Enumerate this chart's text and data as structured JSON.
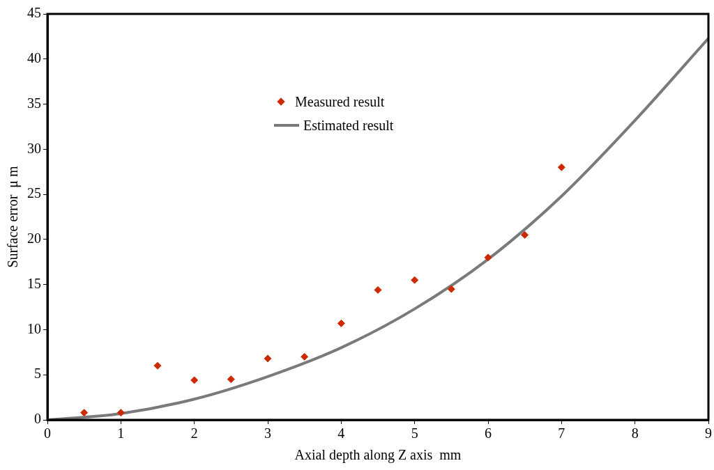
{
  "chart_data": {
    "type": "scatter",
    "xlabel": "Axial depth along Z axis  mm",
    "ylabel": "Surface error  μ m",
    "xlim": [
      0,
      9
    ],
    "xticks": [
      0,
      1,
      2,
      3,
      4,
      5,
      6,
      7,
      8,
      9
    ],
    "ylim": [
      0,
      45
    ],
    "yticks": [
      0,
      5,
      10,
      15,
      20,
      25,
      30,
      35,
      40,
      45
    ],
    "grid": false,
    "legend": "top left",
    "marker": "diamond",
    "series": [
      {
        "name": "Measured result",
        "color": "#cc2a00",
        "x": [
          0.5,
          1,
          1.5,
          2,
          2.5,
          3,
          3.5,
          4,
          4.5,
          5,
          5.5,
          6,
          6.5,
          7
        ],
        "values": [
          0.8,
          0.8,
          6,
          4.4,
          4.5,
          6.8,
          7,
          10.7,
          14.4,
          15.5,
          14.5,
          18,
          20.5,
          28
        ]
      },
      {
        "name": "Estimated result",
        "type": "line",
        "marker": "none",
        "color": "#7a7a7a",
        "x": [
          0,
          1,
          2,
          3,
          4,
          5,
          6,
          7,
          8,
          9
        ],
        "values": [
          0,
          0.7,
          2.3,
          4.8,
          8,
          12.3,
          17.8,
          24.8,
          33.2,
          42.3
        ]
      }
    ]
  }
}
